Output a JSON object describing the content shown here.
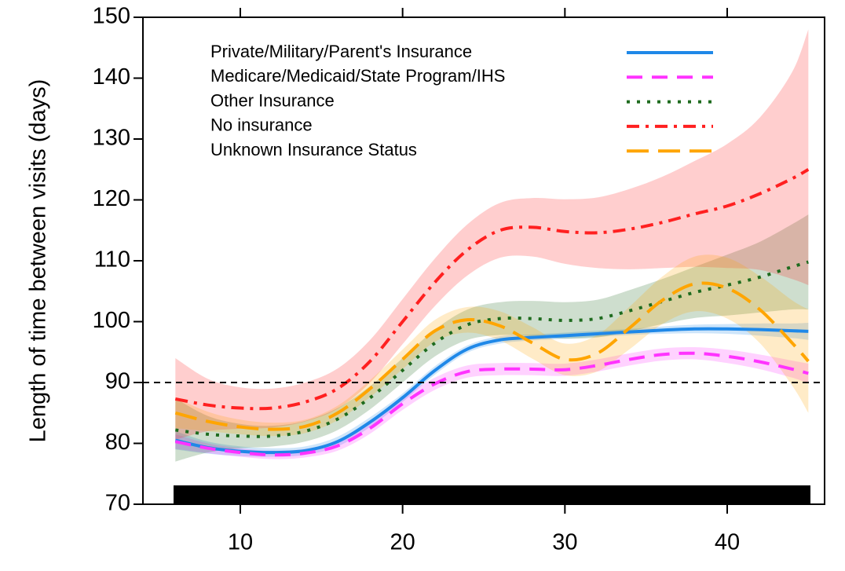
{
  "chart_data": {
    "type": "line",
    "y_label": "Length of time between visits (days)",
    "xlim": [
      4,
      46
    ],
    "xticks": [
      10,
      20,
      30,
      40
    ],
    "ylim": [
      70,
      150
    ],
    "yticks": [
      70,
      80,
      90,
      100,
      110,
      120,
      130,
      140,
      150
    ],
    "reference_line": 90,
    "legend": "top-left",
    "x": [
      6,
      8,
      10,
      12,
      14,
      16,
      18,
      20,
      22,
      24,
      26,
      28,
      30,
      32,
      34,
      36,
      38,
      40,
      42,
      44,
      45
    ],
    "series": [
      {
        "name": "Private/Military/Parent's Insurance",
        "color": "#1f88e8",
        "dash": "solid",
        "values": [
          80.5,
          79.3,
          78.7,
          78.5,
          78.8,
          80.3,
          83.5,
          87.5,
          92,
          95.5,
          97,
          97.4,
          97.7,
          98,
          98.3,
          98.6,
          98.8,
          98.8,
          98.7,
          98.5,
          98.4
        ],
        "lower": [
          79,
          78.3,
          77.9,
          77.8,
          78.1,
          79.5,
          82.7,
          86.8,
          91.3,
          94.9,
          96.4,
          96.9,
          97.2,
          97.5,
          97.8,
          98,
          98.1,
          98,
          97.7,
          97.3,
          97
        ],
        "upper": [
          82,
          80.3,
          79.5,
          79.2,
          79.5,
          81.1,
          84.3,
          88.2,
          92.7,
          96.1,
          97.6,
          97.9,
          98.2,
          98.5,
          98.8,
          99.2,
          99.5,
          99.6,
          99.7,
          99.7,
          99.8
        ]
      },
      {
        "name": "Medicare/Medicaid/State Program/IHS",
        "color": "#ff33ff",
        "dash": "dashed",
        "values": [
          80.3,
          79.2,
          78.5,
          78.1,
          78.4,
          79.6,
          82.5,
          86.5,
          89.8,
          91.8,
          92.2,
          92.2,
          92.1,
          92.8,
          93.8,
          94.6,
          94.8,
          94.3,
          93.4,
          92.2,
          91.5
        ],
        "lower": [
          79.1,
          78.4,
          77.8,
          77.4,
          77.7,
          78.8,
          81.6,
          85.5,
          88.8,
          90.8,
          91.2,
          91.2,
          91.1,
          91.8,
          92.8,
          93.6,
          93.8,
          93.2,
          92.2,
          90.8,
          89.9
        ],
        "upper": [
          81.5,
          80,
          79.2,
          78.8,
          79.1,
          80.4,
          83.4,
          87.5,
          90.8,
          92.8,
          93.2,
          93.2,
          93.1,
          93.8,
          94.8,
          95.6,
          95.8,
          95.4,
          94.6,
          93.6,
          93.1
        ]
      },
      {
        "name": "Other Insurance",
        "color": "#1e6b1e",
        "dash": "dotted",
        "values": [
          82.2,
          81.5,
          81.2,
          81.2,
          82,
          84,
          87.5,
          92,
          96.5,
          99.5,
          100.5,
          100.5,
          100.2,
          100.5,
          101.8,
          103.3,
          104.8,
          106,
          107.3,
          109,
          109.8
        ],
        "lower": [
          77,
          78.5,
          79.2,
          79.5,
          80.3,
          82.2,
          85.6,
          90,
          94.3,
          97,
          97.8,
          97.6,
          97.2,
          97.4,
          98.4,
          99.6,
          100.6,
          101,
          101.5,
          102,
          102
        ],
        "upper": [
          87.4,
          84.5,
          83.2,
          82.9,
          83.7,
          85.8,
          89.4,
          94,
          98.7,
          102,
          103.2,
          103.4,
          103.2,
          103.6,
          105.2,
          107,
          109,
          111,
          113.1,
          116,
          117.6
        ]
      },
      {
        "name": "No insurance",
        "color": "#ff2020",
        "dash": "dashdot",
        "values": [
          87.3,
          86.3,
          85.8,
          85.8,
          86.8,
          89,
          93.5,
          100,
          106.5,
          111.8,
          115,
          115.5,
          114.8,
          114.6,
          115.2,
          116.3,
          117.7,
          119,
          121,
          123.5,
          125
        ],
        "lower": [
          80.6,
          82,
          82.4,
          82.6,
          83.6,
          85.7,
          90,
          96.3,
          102.6,
          107.6,
          110.5,
          110.7,
          109.5,
          108.8,
          108.6,
          108.8,
          109,
          108.8,
          108.5,
          107,
          106
        ],
        "upper": [
          94,
          90.6,
          89.2,
          89,
          90,
          92.3,
          97,
          103.7,
          110.4,
          116,
          119.5,
          120.3,
          120.1,
          120.4,
          121.8,
          123.8,
          126.4,
          129.2,
          133.5,
          141,
          148
        ]
      },
      {
        "name": "Unknown Insurance Status",
        "color": "#ffa500",
        "dash": "longdash",
        "values": [
          85,
          83.6,
          82.7,
          82.3,
          82.8,
          85,
          89,
          93.8,
          98.5,
          100.3,
          99.3,
          96.5,
          93.8,
          94.8,
          99,
          103.5,
          106.2,
          105.5,
          102,
          96.5,
          93.5
        ],
        "lower": [
          82.5,
          82,
          81.5,
          81.2,
          81.7,
          83.8,
          87.6,
          92.2,
          96.7,
          98.2,
          96.9,
          93.9,
          91.2,
          91.8,
          95.5,
          99.6,
          101.7,
          100.5,
          96.5,
          89.5,
          85
        ],
        "upper": [
          87.5,
          85.2,
          83.9,
          83.4,
          83.9,
          86.2,
          90.4,
          95.4,
          100.3,
          102.4,
          101.7,
          99.1,
          96.4,
          97.8,
          102.5,
          107.4,
          110.7,
          110.5,
          107.5,
          103.5,
          102
        ]
      }
    ]
  }
}
